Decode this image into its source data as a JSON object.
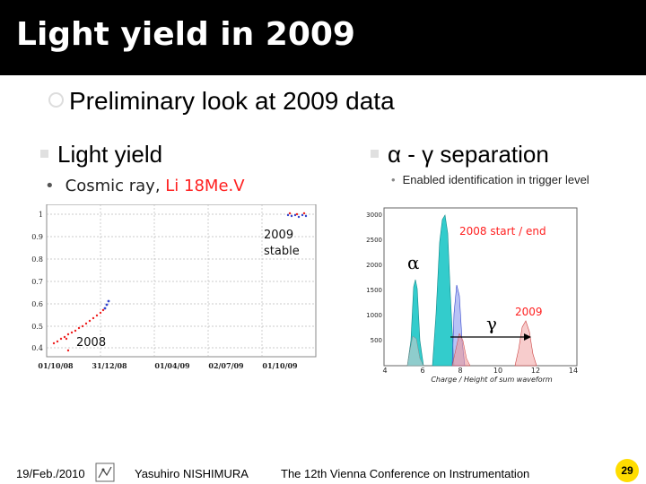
{
  "title": "Light yield in 2009",
  "subtitle": "Preliminary look at 2009 data",
  "left": {
    "heading": "Light yield",
    "bullet_main": "Cosmic ray,",
    "bullet_red": "Li 18Me.V",
    "plot": {
      "y_ticks": [
        "1",
        "0.9",
        "0.8",
        "0.7",
        "0.6",
        "0.5",
        "0.4"
      ],
      "x_ticks": [
        "01/10/08",
        "31/12/08",
        "01/04/09",
        "02/07/09",
        "01/10/09"
      ],
      "annotation_2009_line1": "2009",
      "annotation_2009_line2": "stable",
      "annotation_2008": "2008"
    }
  },
  "right": {
    "heading_alpha": "α",
    "heading_dash": "-",
    "heading_gamma": "γ",
    "heading_rest": "separation",
    "sub_bullet": "Enabled identification in trigger level",
    "plot": {
      "y_ticks": [
        "3000",
        "2500",
        "2000",
        "1500",
        "1000",
        "500"
      ],
      "x_ticks": [
        "4",
        "6",
        "8",
        "10",
        "12",
        "14"
      ],
      "xlabel": "Charge / Height of sum waveform",
      "label_2008": "2008 start / end",
      "label_2009": "2009",
      "alpha_label": "α",
      "gamma_label": "γ"
    }
  },
  "footer": {
    "date": "19/Feb./2010",
    "author": "Yasuhiro NISHIMURA",
    "conference": "The 12th Vienna Conference on Instrumentation",
    "page": "29"
  },
  "colors": {
    "title_bg": "#000000",
    "red": "#ff2020",
    "cyan": "#33cccc",
    "blue": "#3344cc",
    "page_badge": "#ffdd00"
  }
}
